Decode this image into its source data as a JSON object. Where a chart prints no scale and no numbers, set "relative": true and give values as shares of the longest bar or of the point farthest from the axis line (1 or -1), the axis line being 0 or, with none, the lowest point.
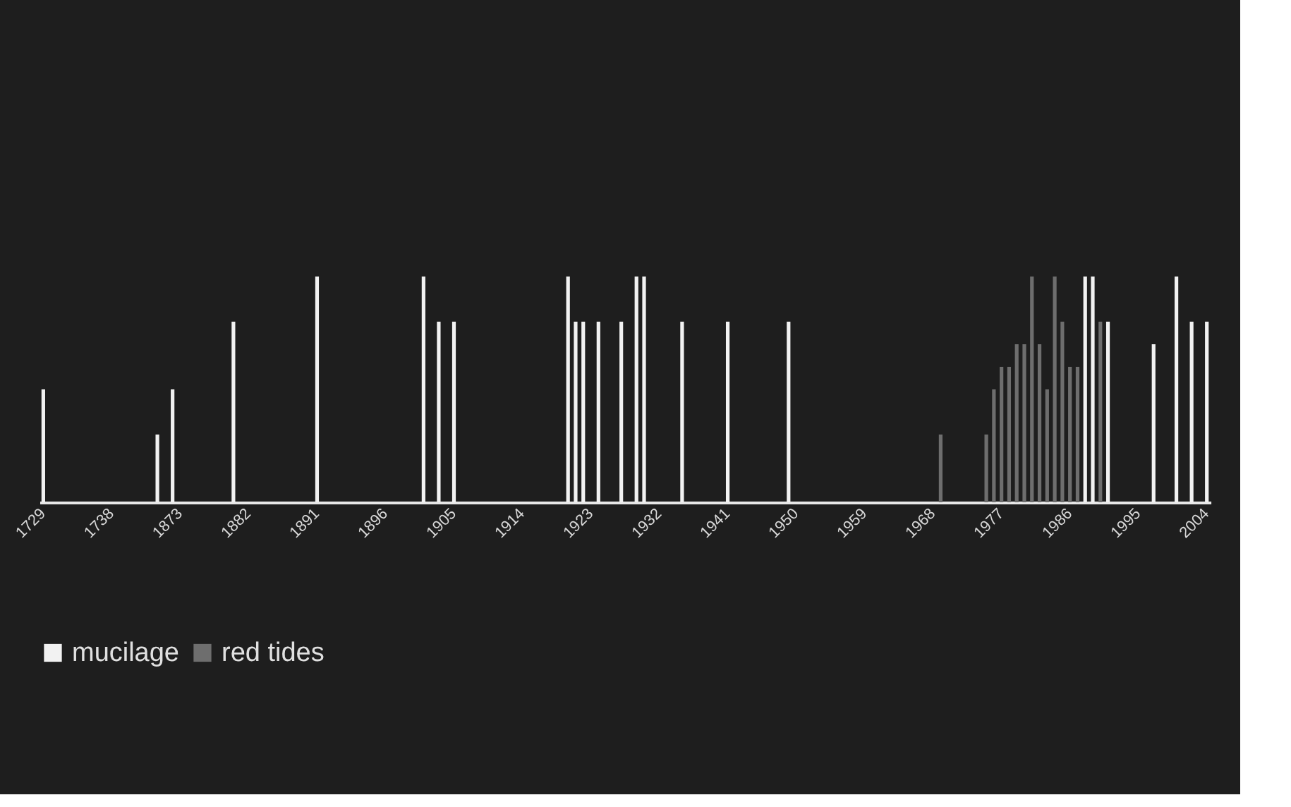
{
  "chart_data": {
    "type": "bar",
    "relative": true,
    "grid": false,
    "legend": "bottom",
    "categories": [
      "1729",
      null,
      null,
      null,
      null,
      null,
      null,
      null,
      null,
      "1738",
      null,
      null,
      null,
      null,
      null,
      null,
      null,
      null,
      "1873",
      null,
      null,
      null,
      null,
      null,
      null,
      null,
      null,
      "1882",
      null,
      null,
      null,
      null,
      null,
      null,
      null,
      null,
      "1891",
      null,
      null,
      null,
      null,
      null,
      null,
      null,
      null,
      "1896",
      null,
      null,
      null,
      null,
      null,
      null,
      null,
      null,
      "1905",
      null,
      null,
      null,
      null,
      null,
      null,
      null,
      null,
      "1914",
      null,
      null,
      null,
      null,
      null,
      null,
      null,
      null,
      "1923",
      null,
      null,
      null,
      null,
      null,
      null,
      null,
      null,
      "1932",
      null,
      null,
      null,
      null,
      null,
      null,
      null,
      null,
      "1941",
      null,
      null,
      null,
      null,
      null,
      null,
      null,
      null,
      "1950",
      null,
      null,
      null,
      null,
      null,
      null,
      null,
      null,
      "1959",
      null,
      null,
      null,
      null,
      null,
      null,
      null,
      null,
      "1968",
      null,
      null,
      null,
      null,
      null,
      null,
      null,
      null,
      "1977",
      null,
      null,
      null,
      null,
      null,
      null,
      null,
      null,
      "1986",
      null,
      null,
      null,
      null,
      null,
      null,
      null,
      null,
      "1995",
      null,
      null,
      null,
      null,
      null,
      null,
      null,
      null,
      "2004"
    ],
    "series": [
      {
        "name": "mucilage",
        "color": "#f2f2f2",
        "values": [
          0.5,
          null,
          null,
          null,
          null,
          null,
          null,
          null,
          null,
          null,
          null,
          null,
          null,
          null,
          null,
          0.3,
          null,
          0.5,
          null,
          null,
          null,
          null,
          null,
          null,
          null,
          0.8,
          null,
          null,
          null,
          null,
          null,
          null,
          null,
          null,
          null,
          null,
          1,
          null,
          null,
          null,
          null,
          null,
          null,
          null,
          null,
          null,
          null,
          null,
          null,
          null,
          1,
          null,
          0.8,
          null,
          0.8,
          null,
          null,
          null,
          null,
          null,
          null,
          null,
          null,
          null,
          null,
          null,
          null,
          null,
          null,
          1,
          0.8,
          0.8,
          null,
          0.8,
          null,
          null,
          0.8,
          null,
          1,
          1,
          null,
          null,
          null,
          null,
          0.8,
          null,
          null,
          null,
          null,
          null,
          0.8,
          null,
          null,
          null,
          null,
          null,
          null,
          null,
          0.8,
          null,
          null,
          null,
          null,
          null,
          null,
          null,
          null,
          null,
          null,
          null,
          null,
          null,
          null,
          null,
          null,
          null,
          null,
          null,
          null,
          null,
          null,
          null,
          null,
          null,
          null,
          null,
          null,
          null,
          null,
          null,
          null,
          null,
          null,
          null,
          null,
          null,
          null,
          1,
          1,
          null,
          0.8,
          null,
          null,
          null,
          null,
          null,
          0.7,
          null,
          null,
          1,
          null,
          0.8,
          null,
          0.8
        ]
      },
      {
        "name": "red tides",
        "color": "#6e6e6e",
        "values": [
          null,
          null,
          null,
          null,
          null,
          null,
          null,
          null,
          null,
          null,
          null,
          null,
          null,
          null,
          null,
          null,
          null,
          null,
          null,
          null,
          null,
          null,
          null,
          null,
          null,
          null,
          null,
          null,
          null,
          null,
          null,
          null,
          null,
          null,
          null,
          null,
          null,
          null,
          null,
          null,
          null,
          null,
          null,
          null,
          null,
          null,
          null,
          null,
          null,
          null,
          null,
          null,
          null,
          null,
          null,
          null,
          null,
          null,
          null,
          null,
          null,
          null,
          null,
          null,
          null,
          null,
          null,
          null,
          null,
          null,
          null,
          null,
          null,
          null,
          null,
          null,
          null,
          null,
          null,
          null,
          null,
          null,
          null,
          null,
          null,
          null,
          null,
          null,
          null,
          null,
          null,
          null,
          null,
          null,
          null,
          null,
          null,
          null,
          null,
          null,
          null,
          null,
          null,
          null,
          null,
          null,
          null,
          null,
          null,
          null,
          null,
          null,
          null,
          null,
          null,
          null,
          null,
          null,
          0.3,
          null,
          null,
          null,
          null,
          null,
          0.3,
          0.5,
          0.6,
          0.6,
          0.7,
          0.7,
          1,
          0.7,
          0.5,
          1,
          0.8,
          0.6,
          0.6,
          null,
          null,
          0.8,
          null,
          null,
          null,
          null,
          null,
          null,
          null,
          null,
          null,
          null,
          null,
          null,
          null,
          null
        ]
      }
    ]
  }
}
